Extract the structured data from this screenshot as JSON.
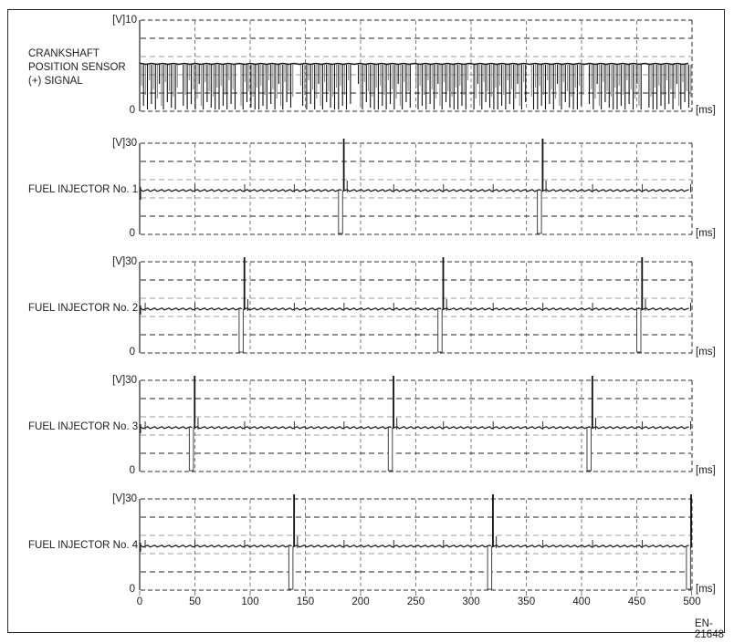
{
  "figure": {
    "code": "EN-21648"
  },
  "colors": {
    "trace_dark": "#111111",
    "trace_gray": "#8a8a8a",
    "grid_dark": "#1f1f1f",
    "grid_gray": "#9b9b9b",
    "grid_vertical": "#7d7d7d",
    "axis": "#222222",
    "border": "#2a2a2a"
  },
  "x_axis": {
    "unit_label": "[ms]",
    "ticks": [
      0,
      50,
      100,
      150,
      200,
      250,
      300,
      350,
      400,
      450,
      500
    ],
    "range": [
      0,
      500
    ]
  },
  "panels": [
    {
      "type": "crank",
      "label_lines": [
        "CRANKSHAFT",
        "POSITION SENSOR",
        "(+) SIGNAL"
      ],
      "y_top_label": "[V]10",
      "y_bottom_label": "0",
      "ms_label": "[ms]"
    },
    {
      "type": "injector",
      "label": "FUEL INJECTOR No. 1",
      "y_top_label": "[V]30",
      "y_bottom_label": "0",
      "ms_label": "[ms]",
      "events_ms": [
        0,
        180,
        360
      ]
    },
    {
      "type": "injector",
      "label": "FUEL INJECTOR No. 2",
      "y_top_label": "[V]30",
      "y_bottom_label": "0",
      "ms_label": "[ms]",
      "events_ms": [
        90,
        270,
        450
      ]
    },
    {
      "type": "injector",
      "label": "FUEL INJECTOR No. 3",
      "y_top_label": "[V]30",
      "y_bottom_label": "0",
      "ms_label": "[ms]",
      "events_ms": [
        45,
        225,
        405
      ]
    },
    {
      "type": "injector",
      "label": "FUEL INJECTOR No. 4",
      "y_top_label": "[V]30",
      "y_bottom_label": "0",
      "ms_label": "[ms]",
      "events_ms": [
        135,
        315,
        495
      ]
    }
  ],
  "chart_data": [
    {
      "type": "line",
      "title": "CRANKSHAFT POSITION SENSOR (+) SIGNAL",
      "xlabel": "[ms]",
      "ylabel": "[V]",
      "xlim": [
        0,
        500
      ],
      "ylim": [
        0,
        10
      ],
      "x_ticks": [
        0,
        50,
        100,
        150,
        200,
        250,
        300,
        350,
        400,
        450,
        500
      ],
      "grid": "dashed, vertical every 50 ms, horizontal every 2 V",
      "waveform": "dense square-tooth pulse train pulled low from a constant high rail",
      "baseline_v": 5.2,
      "pulse_low_v_range": [
        0.2,
        3.4
      ],
      "tooth_period_ms": 1.8,
      "missing_tooth_gap_interval_ms": 52.6,
      "missing_tooth_gap_width_ms": 4.1,
      "first_gap_at_ms": 34.7
    },
    {
      "type": "line",
      "title": "FUEL INJECTOR No. 1",
      "xlabel": "[ms]",
      "ylabel": "[V]",
      "xlim": [
        0,
        500
      ],
      "ylim": [
        0,
        30
      ],
      "grid": "dashed, vertical every 50 ms, horizontal every 6 V",
      "baseline_v": 14.5,
      "injection_events_ms": [
        0,
        180,
        360
      ],
      "injection_pulse_width_ms": 4,
      "pulse_low_v": 0,
      "flyback_peak_v": 33,
      "flyback_clipped_above_v": 30,
      "recovery_blip_v": 18,
      "crosstalk_blips_ms": [
        5,
        50,
        95,
        140,
        185,
        230,
        275,
        320,
        365,
        410,
        455,
        500
      ]
    },
    {
      "type": "line",
      "title": "FUEL INJECTOR No. 2",
      "xlabel": "[ms]",
      "ylabel": "[V]",
      "xlim": [
        0,
        500
      ],
      "ylim": [
        0,
        30
      ],
      "grid": "dashed, vertical every 50 ms, horizontal every 6 V",
      "baseline_v": 14.5,
      "injection_events_ms": [
        90,
        270,
        450
      ],
      "injection_pulse_width_ms": 4,
      "pulse_low_v": 0,
      "flyback_peak_v": 33,
      "flyback_clipped_above_v": 30,
      "recovery_blip_v": 18,
      "crosstalk_blips_ms": [
        5,
        50,
        95,
        140,
        185,
        230,
        275,
        320,
        365,
        410,
        455,
        500
      ]
    },
    {
      "type": "line",
      "title": "FUEL INJECTOR No. 3",
      "xlabel": "[ms]",
      "ylabel": "[V]",
      "xlim": [
        0,
        500
      ],
      "ylim": [
        0,
        30
      ],
      "grid": "dashed, vertical every 50 ms, horizontal every 6 V",
      "baseline_v": 14.5,
      "injection_events_ms": [
        45,
        225,
        405
      ],
      "injection_pulse_width_ms": 4,
      "pulse_low_v": 0,
      "flyback_peak_v": 33,
      "flyback_clipped_above_v": 30,
      "recovery_blip_v": 18,
      "crosstalk_blips_ms": [
        5,
        50,
        95,
        140,
        185,
        230,
        275,
        320,
        365,
        410,
        455,
        500
      ]
    },
    {
      "type": "line",
      "title": "FUEL INJECTOR No. 4",
      "xlabel": "[ms]",
      "ylabel": "[V]",
      "xlim": [
        0,
        500
      ],
      "ylim": [
        0,
        30
      ],
      "grid": "dashed, vertical every 50 ms, horizontal every 6 V",
      "baseline_v": 14.5,
      "injection_events_ms": [
        135,
        315,
        495
      ],
      "injection_pulse_width_ms": 4,
      "pulse_low_v": 0,
      "flyback_peak_v": 33,
      "flyback_clipped_above_v": 30,
      "recovery_blip_v": 18,
      "crosstalk_blips_ms": [
        5,
        50,
        95,
        140,
        185,
        230,
        275,
        320,
        365,
        410,
        455,
        500
      ]
    }
  ]
}
